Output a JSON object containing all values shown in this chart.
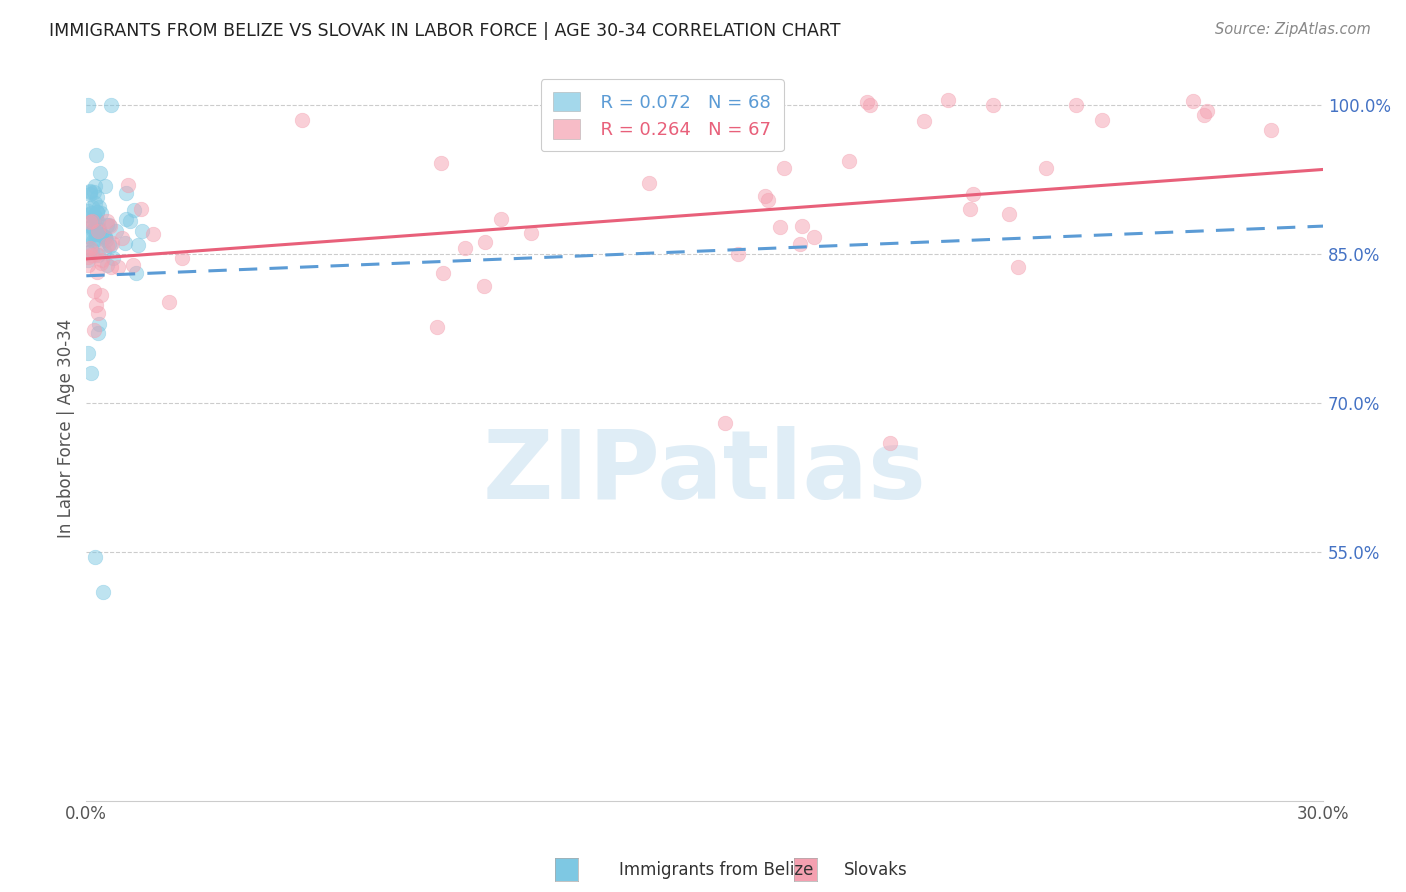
{
  "title": "IMMIGRANTS FROM BELIZE VS SLOVAK IN LABOR FORCE | AGE 30-34 CORRELATION CHART",
  "source_text": "Source: ZipAtlas.com",
  "ylabel": "In Labor Force | Age 30-34",
  "xlim": [
    0.0,
    0.3
  ],
  "ylim": [
    0.3,
    1.05
  ],
  "yticks": [
    0.55,
    0.7,
    0.85,
    1.0
  ],
  "ytick_labels": [
    "55.0%",
    "70.0%",
    "85.0%",
    "100.0%"
  ],
  "belize_r": 0.072,
  "belize_n": 68,
  "slovak_r": 0.264,
  "slovak_n": 67,
  "belize_color": "#7ec8e3",
  "slovak_color": "#f4a0b0",
  "belize_line_color": "#5b9bd5",
  "slovak_line_color": "#e8607a",
  "watermark": "ZIPatlas",
  "watermark_color": "#daeaf5",
  "legend_belize": "Immigrants from Belize",
  "legend_slovak": "Slovaks",
  "belize_trend_x": [
    0.0,
    0.3
  ],
  "belize_trend_y": [
    0.828,
    0.878
  ],
  "slovak_trend_x": [
    0.0,
    0.3
  ],
  "slovak_trend_y": [
    0.845,
    0.935
  ],
  "right_ytick_color": "#4472c4",
  "grid_color": "#cccccc",
  "title_color": "#222222",
  "source_color": "#888888",
  "ylabel_color": "#555555"
}
